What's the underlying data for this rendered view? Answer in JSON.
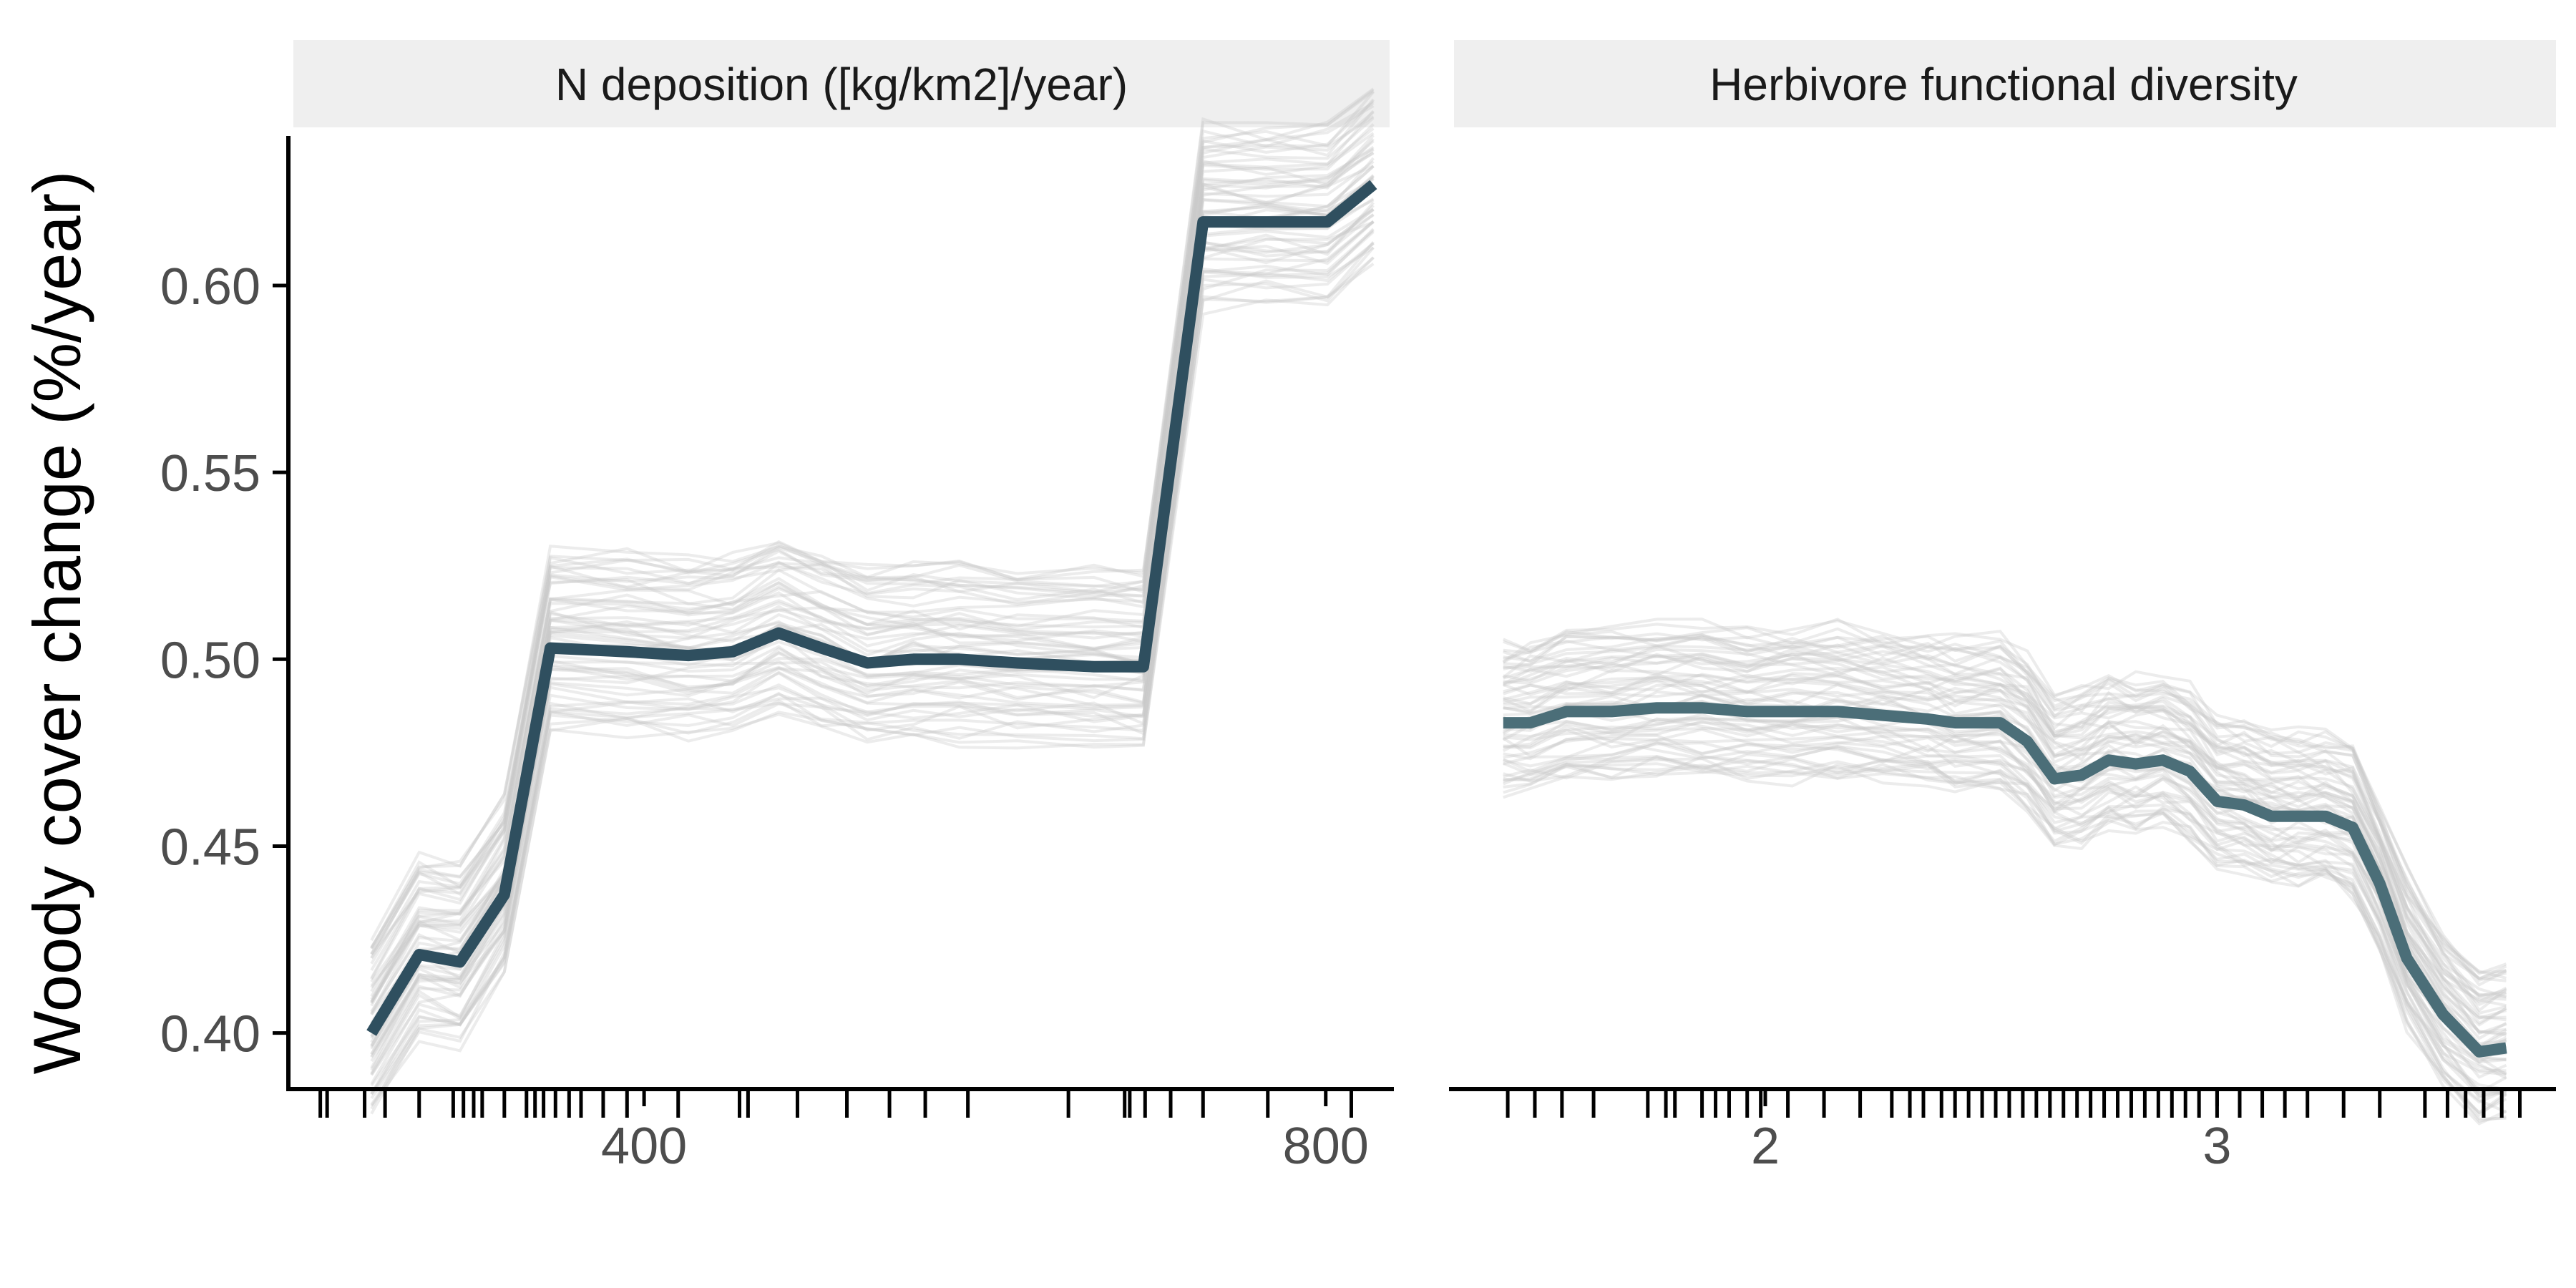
{
  "ylabel": "Woody cover change (%/year)",
  "ylim": [
    0.385,
    0.64
  ],
  "yticks": [
    0.4,
    0.45,
    0.5,
    0.55,
    0.6
  ],
  "ytick_labels": [
    "0.40",
    "0.45",
    "0.50",
    "0.55",
    "0.60"
  ],
  "colors": {
    "ice": "#c8c8c8",
    "strip_bg": "#efefef",
    "axis": "#000000",
    "tick_label": "#4d4d4d"
  },
  "chart_data": [
    {
      "type": "line",
      "title": "N deposition ([kg/km2]/year)",
      "xlabel": "",
      "ylabel": "Woody cover change (%/year)",
      "xlim": [
        190,
        840
      ],
      "ylim": [
        0.385,
        0.64
      ],
      "xticks": [
        400,
        800
      ],
      "xtick_labels": [
        "400",
        "800"
      ],
      "grid": false,
      "legend": "none",
      "pdp_color": "#2f4f5f",
      "ice_curves": {
        "count": 60,
        "y_spread": [
          -0.02,
          0.025
        ],
        "note_style": "thin translucent grey lines"
      },
      "pdp": {
        "x": [
          240,
          268,
          292,
          318,
          345,
          390,
          426,
          452,
          479,
          504,
          531,
          558,
          585,
          619,
          664,
          693,
          728,
          765,
          801,
          828
        ],
        "y": [
          0.4,
          0.421,
          0.419,
          0.437,
          0.503,
          0.502,
          0.501,
          0.502,
          0.507,
          0.503,
          0.499,
          0.5,
          0.5,
          0.499,
          0.498,
          0.498,
          0.617,
          0.617,
          0.617,
          0.627
        ]
      },
      "rug": [
        210,
        214,
        236,
        248,
        268,
        288,
        294,
        300,
        305,
        318,
        331,
        336,
        341,
        348,
        356,
        363,
        376,
        390,
        420,
        456,
        461,
        490,
        519,
        544,
        565,
        590,
        649,
        682,
        685,
        694,
        709,
        728,
        766,
        815
      ]
    },
    {
      "type": "line",
      "title": "Herbivore functional diversity",
      "xlabel": "",
      "ylabel": "Woody cover change (%/year)",
      "xlim": [
        1.3,
        3.75
      ],
      "ylim": [
        0.385,
        0.64
      ],
      "xticks": [
        2,
        3
      ],
      "xtick_labels": [
        "2",
        "3"
      ],
      "grid": false,
      "legend": "none",
      "pdp_color": "#4b6e78",
      "ice_curves": {
        "count": 60,
        "y_spread": [
          -0.018,
          0.022
        ],
        "note_style": "thin translucent grey lines"
      },
      "pdp": {
        "x": [
          1.42,
          1.48,
          1.56,
          1.66,
          1.76,
          1.86,
          1.96,
          2.06,
          2.16,
          2.26,
          2.36,
          2.42,
          2.52,
          2.58,
          2.64,
          2.7,
          2.76,
          2.82,
          2.88,
          2.94,
          3.0,
          3.06,
          3.12,
          3.18,
          3.24,
          3.3,
          3.36,
          3.42,
          3.5,
          3.58,
          3.64
        ],
        "y": [
          0.483,
          0.483,
          0.486,
          0.486,
          0.487,
          0.487,
          0.486,
          0.486,
          0.486,
          0.485,
          0.484,
          0.483,
          0.483,
          0.478,
          0.468,
          0.469,
          0.473,
          0.472,
          0.473,
          0.47,
          0.462,
          0.461,
          0.458,
          0.458,
          0.458,
          0.455,
          0.44,
          0.42,
          0.405,
          0.395,
          0.396
        ]
      },
      "rug": [
        1.43,
        1.49,
        1.55,
        1.62,
        1.74,
        1.78,
        1.8,
        1.86,
        1.89,
        1.92,
        1.96,
        1.99,
        2.05,
        2.13,
        2.21,
        2.28,
        2.32,
        2.35,
        2.39,
        2.42,
        2.45,
        2.48,
        2.51,
        2.54,
        2.57,
        2.6,
        2.63,
        2.66,
        2.69,
        2.72,
        2.75,
        2.78,
        2.81,
        2.84,
        2.87,
        2.9,
        2.93,
        2.96,
        3.0,
        3.05,
        3.1,
        3.15,
        3.2,
        3.28,
        3.36,
        3.46,
        3.51,
        3.55,
        3.59,
        3.63,
        3.67
      ]
    }
  ]
}
